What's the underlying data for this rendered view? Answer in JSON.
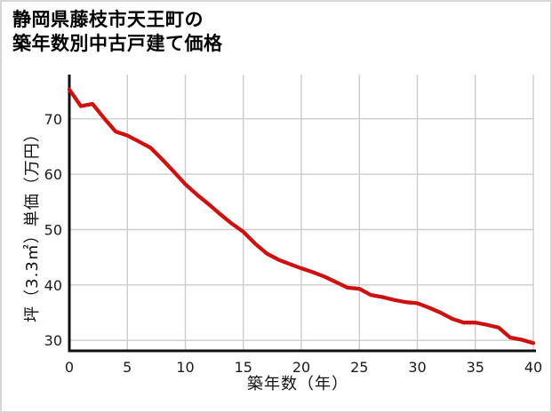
{
  "title": {
    "line1": "静岡県藤枝市天王町の",
    "line2": "築年数別中古戸建て価格"
  },
  "chart_data": {
    "type": "line",
    "title": "静岡県藤枝市天王町の築年数別中古戸建て価格",
    "xlabel": "築年数（年）",
    "ylabel": "坪（3.3㎡）単価（万円）",
    "x": [
      0,
      1,
      2,
      3,
      4,
      5,
      6,
      7,
      8,
      9,
      10,
      11,
      12,
      13,
      14,
      15,
      16,
      17,
      18,
      19,
      20,
      21,
      22,
      23,
      24,
      25,
      26,
      27,
      28,
      29,
      30,
      31,
      32,
      33,
      34,
      35,
      36,
      37,
      38,
      39,
      40
    ],
    "values": [
      75.3,
      72.3,
      72.7,
      70.1,
      67.7,
      67.0,
      65.9,
      64.8,
      62.7,
      60.5,
      58.2,
      56.3,
      54.6,
      52.8,
      51.1,
      49.6,
      47.5,
      45.7,
      44.6,
      43.8,
      43.0,
      42.3,
      41.5,
      40.5,
      39.5,
      39.3,
      38.2,
      37.8,
      37.3,
      36.9,
      36.7,
      35.9,
      35.0,
      33.9,
      33.2,
      33.2,
      32.8,
      32.3,
      30.5,
      30.1,
      29.5
    ],
    "xlim": [
      0,
      40
    ],
    "ylim": [
      28.1,
      78.0
    ],
    "xticks": [
      0,
      5,
      10,
      15,
      20,
      25,
      30,
      35,
      40
    ],
    "yticks": [
      30,
      40,
      50,
      60,
      70
    ],
    "grid": true,
    "legend": false,
    "line_color": "#cc1111",
    "axis_color": "#111111",
    "grid_color": "#cccccc",
    "tick_color": "#1a1a1a"
  }
}
